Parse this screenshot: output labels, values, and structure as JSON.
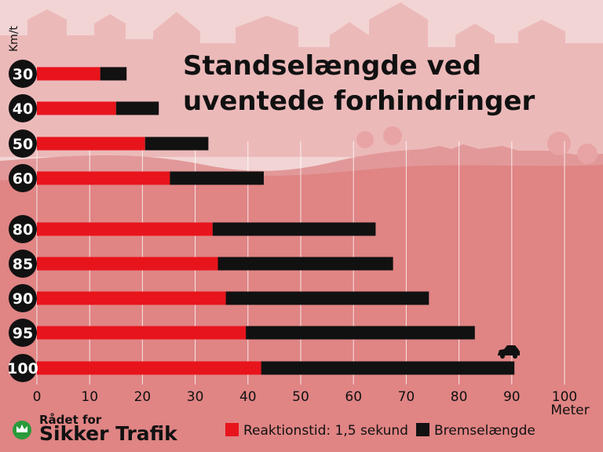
{
  "chart_data": {
    "type": "bar",
    "stacked": true,
    "orientation": "horizontal",
    "title_line1": "Standselængde ved",
    "title_line2": "uventede forhindringer",
    "ylabel": "Km/t",
    "xlabel": "Meter",
    "xlim": [
      0,
      100
    ],
    "xticks": [
      0,
      10,
      20,
      30,
      40,
      50,
      60,
      70,
      80,
      90,
      100
    ],
    "grid": true,
    "legend_position": "bottom",
    "categories": [
      "30",
      "40",
      "50",
      "60",
      "80",
      "85",
      "90",
      "95",
      "100"
    ],
    "series": [
      {
        "name": "Reaktionstid: 1,5 sekund",
        "color": "#e8141c",
        "values": [
          12.0,
          15.0,
          20.5,
          25.2,
          33.3,
          34.3,
          35.8,
          39.6,
          42.5
        ]
      },
      {
        "name": "Bremselængde",
        "color": "#111111",
        "values": [
          5.0,
          8.1,
          12.0,
          17.8,
          30.9,
          33.2,
          38.5,
          43.4,
          48.0
        ]
      }
    ]
  },
  "brand": {
    "line1": "Rådet for",
    "line2": "Sikker Trafik",
    "logo_color": "#2a9a3a"
  },
  "colors": {
    "background_light": "#f2d4d4",
    "skyline": "#ecb9b9",
    "hills": "#e29898",
    "ground": "#e08484"
  }
}
